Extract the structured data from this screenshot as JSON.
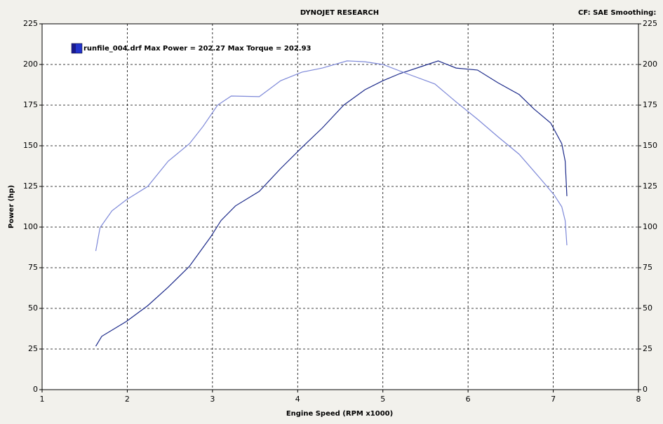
{
  "chart_data": {
    "type": "line",
    "title": "DYNOJET RESEARCH",
    "subtitle": "CF: SAE  Smoothing:",
    "legend_text": "runfile_004.drf Max Power = 202.27 Max Torque = 202.93",
    "x_label": "Engine Speed (RPM x1000)",
    "y_label": "Power (hp)",
    "xlim": [
      1,
      8
    ],
    "xticks": [
      1,
      2,
      3,
      4,
      5,
      6,
      7,
      8
    ],
    "ylim": [
      0,
      225
    ],
    "yticks": [
      0,
      25,
      50,
      75,
      100,
      125,
      150,
      175,
      200,
      225
    ],
    "y2lim": [
      0,
      225
    ],
    "y2ticks": [
      0,
      25,
      50,
      75,
      100,
      125,
      150,
      175,
      200,
      225
    ],
    "grid": true,
    "series": [
      {
        "color": "#1c2a8a",
        "x": [
          1.63,
          1.7,
          1.99,
          2.24,
          2.48,
          2.73,
          2.98,
          3.1,
          3.27,
          3.55,
          3.8,
          4.05,
          4.29,
          4.54,
          4.79,
          5.0,
          5.2,
          5.45,
          5.65,
          5.86,
          6.11,
          6.35,
          6.6,
          6.77,
          6.97,
          7.1,
          7.14,
          7.16
        ],
        "values": [
          26.7,
          32.8,
          42.0,
          51.7,
          63.0,
          75.9,
          94.0,
          104.0,
          113.0,
          122.0,
          136.0,
          149.0,
          161.0,
          175.0,
          184.5,
          190.0,
          194.4,
          198.7,
          202.2,
          197.8,
          196.6,
          188.8,
          181.5,
          172.8,
          164.0,
          151.3,
          140.5,
          119.0
        ]
      },
      {
        "color": "#7d88d8",
        "x": [
          1.63,
          1.68,
          1.82,
          1.99,
          2.24,
          2.48,
          2.73,
          2.89,
          3.06,
          3.22,
          3.55,
          3.8,
          4.05,
          4.29,
          4.58,
          4.79,
          5.0,
          5.28,
          5.61,
          5.86,
          6.11,
          6.35,
          6.6,
          6.85,
          7.01,
          7.1,
          7.14,
          7.16
        ],
        "values": [
          85.3,
          99.6,
          110.0,
          116.8,
          125.0,
          140.5,
          151.3,
          162.0,
          175.0,
          180.6,
          180.2,
          190.0,
          195.3,
          197.8,
          202.2,
          201.7,
          200.0,
          194.4,
          188.0,
          177.0,
          166.4,
          155.6,
          144.8,
          129.7,
          119.8,
          112.5,
          103.9,
          88.8
        ]
      }
    ]
  }
}
